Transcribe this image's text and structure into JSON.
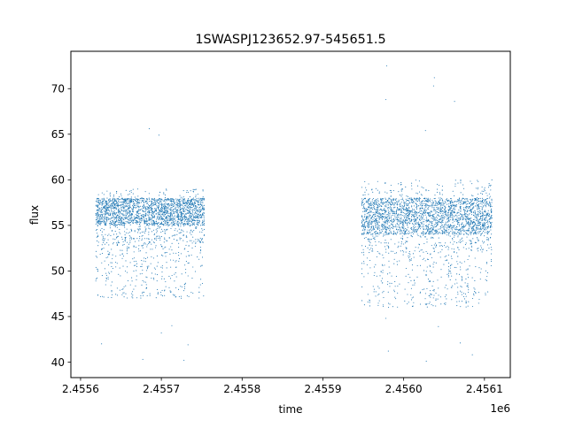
{
  "chart_data": {
    "type": "scatter",
    "title": "1SWASPJ123652.97-545651.5",
    "xlabel": "time",
    "ylabel": "flux",
    "x_offset_label": "1e6",
    "xlim": [
      2455588,
      2456132
    ],
    "ylim": [
      38.3,
      74.1
    ],
    "x_ticks": [
      2455600,
      2455700,
      2455800,
      2455900,
      2456000,
      2456100
    ],
    "x_tick_labels": [
      "2.4556",
      "2.4557",
      "2.4558",
      "2.4559",
      "2.4560",
      "2.4561"
    ],
    "y_ticks": [
      40,
      45,
      50,
      55,
      60,
      65,
      70
    ],
    "y_tick_labels": [
      "40",
      "45",
      "50",
      "55",
      "60",
      "65",
      "70"
    ],
    "grid": false,
    "legend": "none",
    "marker_color": "#1f77b4",
    "series_summary": [
      {
        "segment": 1,
        "x_range": [
          2455619,
          2455753
        ],
        "typical_flux": [
          47,
          59
        ],
        "core_flux": [
          55,
          58
        ],
        "outliers": [
          [
            2455626,
            42.0
          ],
          [
            2455677,
            40.3
          ],
          [
            2455685,
            65.6
          ],
          [
            2455697,
            64.9
          ],
          [
            2455700,
            43.2
          ],
          [
            2455713,
            44.0
          ],
          [
            2455728,
            40.2
          ],
          [
            2455733,
            41.9
          ],
          [
            2455712,
            47.7
          ]
        ]
      },
      {
        "segment": 2,
        "x_range": [
          2455948,
          2456109
        ],
        "typical_flux": [
          46,
          60
        ],
        "core_flux": [
          54,
          58
        ],
        "outliers": [
          [
            2455979,
            72.5
          ],
          [
            2455981,
            41.2
          ],
          [
            2455978,
            68.8
          ],
          [
            2455978,
            44.8
          ],
          [
            2456027,
            65.4
          ],
          [
            2456028,
            40.1
          ],
          [
            2456038,
            71.2
          ],
          [
            2456037,
            70.3
          ],
          [
            2456043,
            43.9
          ],
          [
            2456063,
            68.6
          ],
          [
            2456070,
            42.1
          ],
          [
            2456085,
            40.8
          ]
        ]
      }
    ]
  }
}
